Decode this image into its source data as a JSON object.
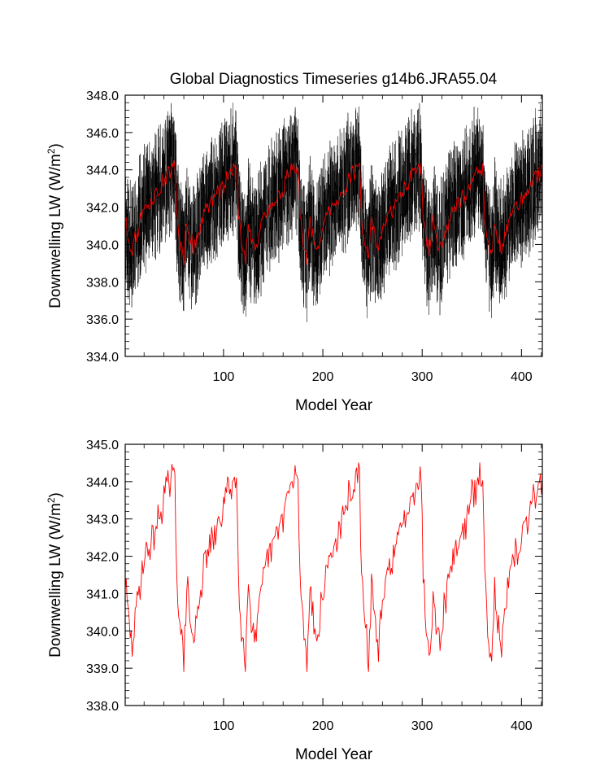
{
  "figure_title": "Global Diagnostics Timeseries g14b6.JRA55.04",
  "colors": {
    "monthly": "#000000",
    "annual": "#ff0000",
    "axis": "#000000",
    "background": "#ffffff"
  },
  "chart_data": [
    {
      "type": "line",
      "title": "Global Diagnostics Timeseries g14b6.JRA55.04",
      "xlabel": "Model Year",
      "ylabel_main": "Downwelling LW (W/m",
      "ylabel_sup": "2",
      "ylabel_close": ")",
      "xlim": [
        1,
        421
      ],
      "ylim": [
        334.0,
        348.0
      ],
      "xticks": [
        100,
        200,
        300,
        400
      ],
      "xtick_labels": [
        "100",
        "200",
        "300",
        "400"
      ],
      "yticks": [
        334.0,
        336.0,
        338.0,
        340.0,
        342.0,
        344.0,
        346.0,
        348.0
      ],
      "ytick_labels": [
        "334.0",
        "336.0",
        "338.0",
        "340.0",
        "342.0",
        "344.0",
        "346.0",
        "348.0"
      ],
      "cycle": {
        "length_years": 62,
        "start_year": 1,
        "shape_points": [
          [
            0,
            341.3
          ],
          [
            3,
            340.4
          ],
          [
            7,
            339.8
          ],
          [
            12,
            340.8
          ],
          [
            18,
            341.7
          ],
          [
            26,
            342.3
          ],
          [
            34,
            342.9
          ],
          [
            40,
            343.6
          ],
          [
            46,
            344.0
          ],
          [
            50,
            344.1
          ],
          [
            52,
            341.5
          ],
          [
            55,
            340.2
          ],
          [
            59,
            339.3
          ],
          [
            62,
            341.3
          ]
        ]
      },
      "series": [
        {
          "name": "monthly",
          "color": "#000000",
          "annual_min": 335.0,
          "annual_max": 347.6,
          "spread": 3.1
        },
        {
          "name": "annual",
          "color": "#ff0000",
          "annual_min": 338.9,
          "annual_max": 344.8,
          "spread": 0.55
        }
      ]
    },
    {
      "type": "line",
      "title": "",
      "xlabel": "Model Year",
      "ylabel_main": "Downwelling LW (W/m",
      "ylabel_sup": "2",
      "ylabel_close": ")",
      "xlim": [
        1,
        421
      ],
      "ylim": [
        338.0,
        345.0
      ],
      "xticks": [
        100,
        200,
        300,
        400
      ],
      "xtick_labels": [
        "100",
        "200",
        "300",
        "400"
      ],
      "yticks": [
        338.0,
        339.0,
        340.0,
        341.0,
        342.0,
        343.0,
        344.0,
        345.0
      ],
      "ytick_labels": [
        "338.0",
        "339.0",
        "340.0",
        "341.0",
        "342.0",
        "343.0",
        "344.0",
        "345.0"
      ],
      "cycle": {
        "length_years": 62,
        "start_year": 1,
        "shape_points": [
          [
            0,
            341.3
          ],
          [
            3,
            340.4
          ],
          [
            7,
            339.6
          ],
          [
            12,
            340.8
          ],
          [
            18,
            341.8
          ],
          [
            26,
            342.4
          ],
          [
            34,
            343.0
          ],
          [
            40,
            343.7
          ],
          [
            46,
            344.0
          ],
          [
            50,
            344.1
          ],
          [
            52,
            341.5
          ],
          [
            55,
            340.2
          ],
          [
            59,
            339.2
          ],
          [
            62,
            341.3
          ]
        ]
      },
      "series": [
        {
          "name": "annual",
          "color": "#ff0000",
          "annual_min": 338.9,
          "annual_max": 344.8,
          "spread": 0.5
        }
      ]
    }
  ]
}
